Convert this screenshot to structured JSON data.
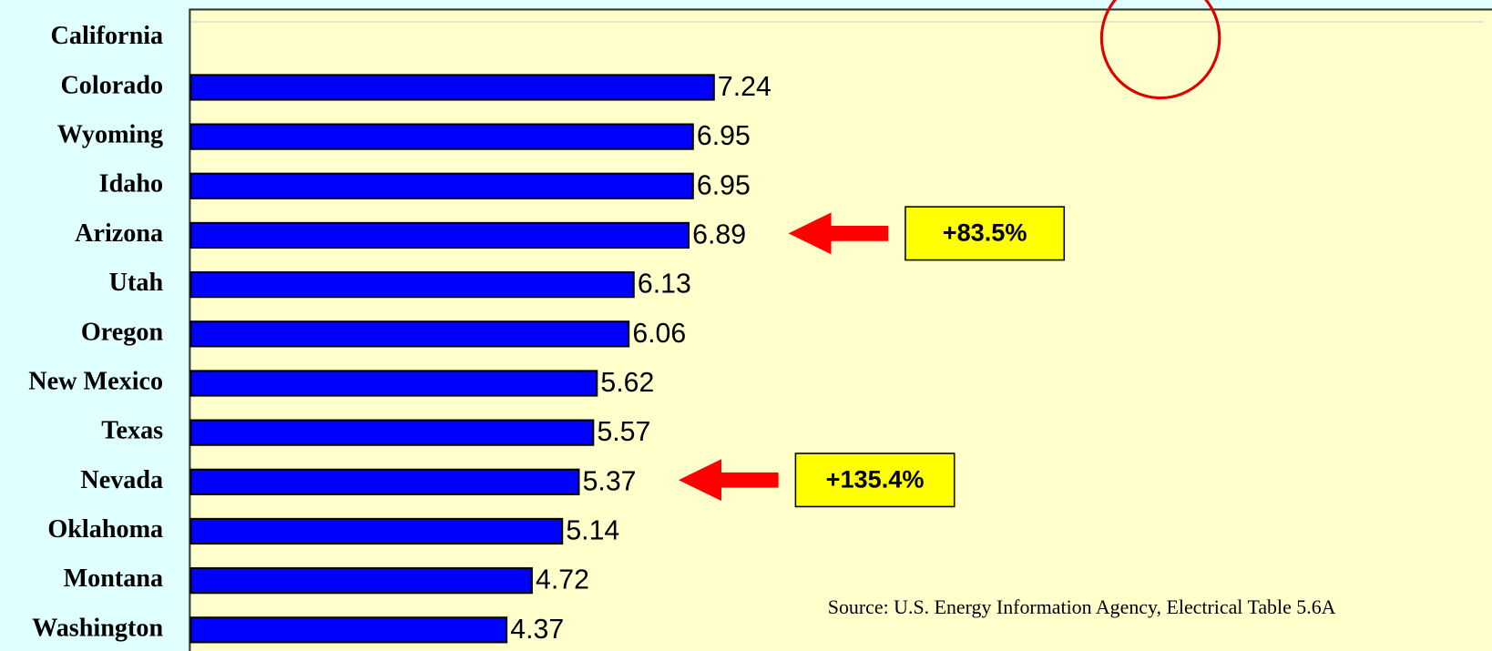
{
  "chart_data": {
    "type": "barh",
    "categories": [
      "California",
      "Colorado",
      "Wyoming",
      "Idaho",
      "Arizona",
      "Utah",
      "Oregon",
      "New Mexico",
      "Texas",
      "Nevada",
      "Oklahoma",
      "Montana",
      "Washington"
    ],
    "values": [
      null,
      7.24,
      6.95,
      6.95,
      6.89,
      6.13,
      6.06,
      5.62,
      5.57,
      5.37,
      5.14,
      4.72,
      4.37
    ],
    "color": "#0000ff",
    "xlim": [
      0,
      18
    ],
    "annotations": [
      {
        "text": "+83.5%",
        "category": "Arizona"
      },
      {
        "text": "+135.4%",
        "category": "Nevada"
      }
    ],
    "source": "Source:  U.S. Energy Information Agency, Electrical Table 5.6A"
  }
}
